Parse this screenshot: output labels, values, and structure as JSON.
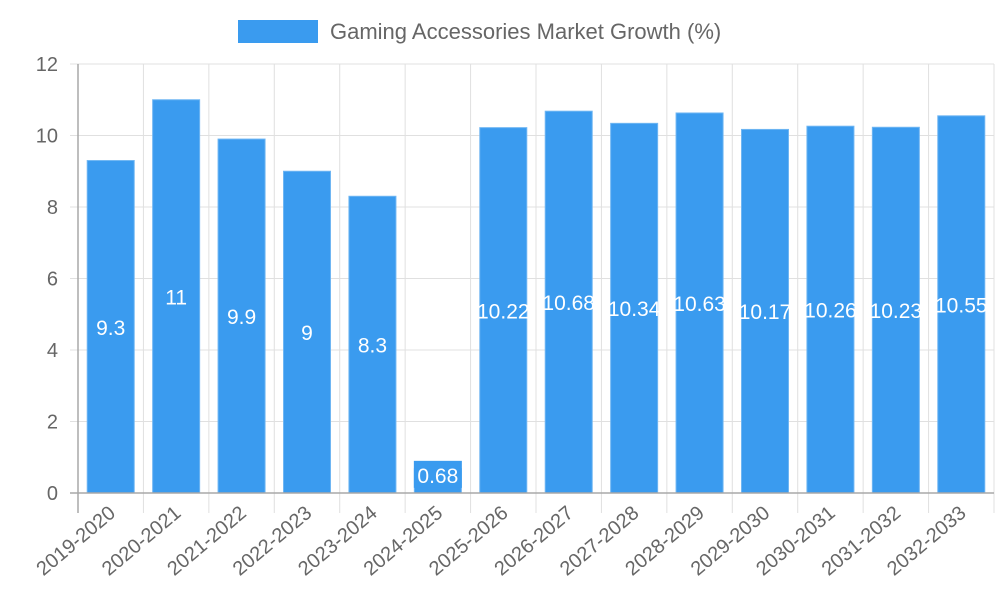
{
  "chart_data": {
    "type": "bar",
    "title": "",
    "legend": [
      "Gaming Accessories Market Growth (%)"
    ],
    "legend_position": "top",
    "xlabel": "",
    "ylabel": "",
    "ylim": [
      0,
      12
    ],
    "yticks": [
      0,
      2,
      4,
      6,
      8,
      10,
      12
    ],
    "grid": true,
    "categories": [
      "2019-2020",
      "2020-2021",
      "2021-2022",
      "2022-2023",
      "2023-2024",
      "2024-2025",
      "2025-2026",
      "2026-2027",
      "2027-2028",
      "2028-2029",
      "2029-2030",
      "2030-2031",
      "2031-2032",
      "2032-2033"
    ],
    "series": [
      {
        "name": "Gaming Accessories Market Growth (%)",
        "color": "#3a9bef",
        "values": [
          9.3,
          11,
          9.9,
          9,
          8.3,
          0.68,
          10.22,
          10.68,
          10.34,
          10.63,
          10.17,
          10.26,
          10.23,
          10.55
        ],
        "labels": [
          "9.3",
          "11",
          "9.9",
          "9",
          "8.3",
          "0.68",
          "10.22",
          "10.68",
          "10.34",
          "10.63",
          "10.17",
          "10.26",
          "10.23",
          "10.55"
        ]
      }
    ]
  }
}
